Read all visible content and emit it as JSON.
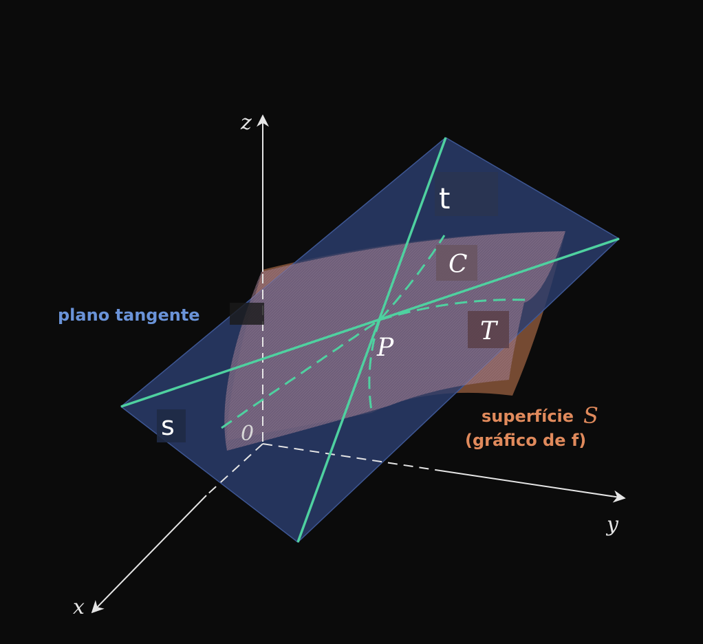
{
  "diagram": {
    "axes": {
      "x": "x",
      "y": "y",
      "z": "z",
      "origin": "0"
    },
    "lines": {
      "s": "s",
      "t": "t"
    },
    "curves": {
      "c": "C",
      "t": "T"
    },
    "point": "P",
    "plane_label": "plano tangente",
    "surface_label": {
      "line1": "superfície",
      "symbol": "S",
      "line2": "(gráfico de f)"
    }
  },
  "colors": {
    "background": "#0b0b0b",
    "plane_fill": "#2b3d6e",
    "plane_label": "#6a93d8",
    "surface": "#8a5a44",
    "surface_label": "#e08a5c",
    "lines": "#4fd1a0",
    "axes": "#e6e6e6"
  }
}
